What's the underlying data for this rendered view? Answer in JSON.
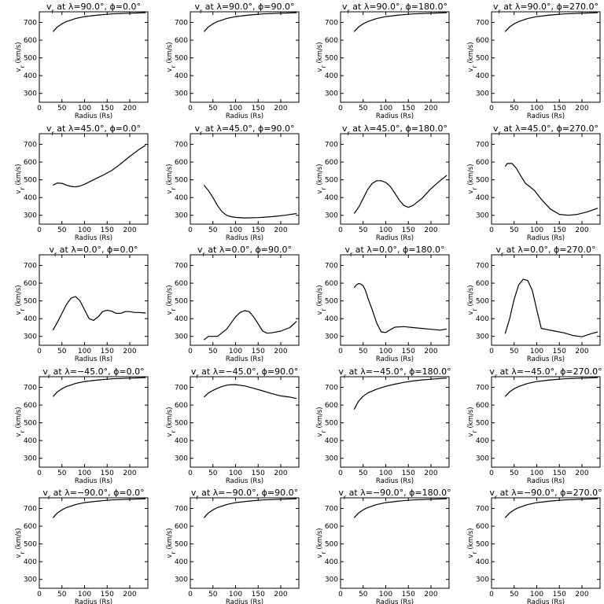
{
  "chart_data": {
    "type": "line",
    "grid": false,
    "rows": 5,
    "cols": 4,
    "xlabel": "Radius (Rs)",
    "ylabel": "v_r (km/s)",
    "xlim": [
      0,
      240
    ],
    "ylim": [
      250,
      760
    ],
    "xticks": [
      0,
      50,
      100,
      150,
      200
    ],
    "yticks": [
      300,
      400,
      500,
      600,
      700
    ],
    "panels": [
      {
        "title": "v_r at λ=90.0°, ϕ=0.0°",
        "x": [
          30,
          40,
          50,
          60,
          80,
          100,
          130,
          160,
          200,
          235
        ],
        "y": [
          648,
          675,
          692,
          705,
          722,
          733,
          742,
          748,
          752,
          755
        ]
      },
      {
        "title": "v_r at λ=90.0°, ϕ=90.0°",
        "x": [
          30,
          40,
          50,
          60,
          80,
          100,
          130,
          160,
          200,
          235
        ],
        "y": [
          648,
          675,
          692,
          705,
          722,
          733,
          742,
          748,
          752,
          755
        ]
      },
      {
        "title": "v_r at λ=90.0°, ϕ=180.0°",
        "x": [
          30,
          40,
          50,
          60,
          80,
          100,
          130,
          160,
          200,
          235
        ],
        "y": [
          648,
          675,
          692,
          705,
          722,
          733,
          742,
          748,
          752,
          755
        ]
      },
      {
        "title": "v_r at λ=90.0°, ϕ=270.0°",
        "x": [
          30,
          40,
          50,
          60,
          80,
          100,
          130,
          160,
          200,
          235
        ],
        "y": [
          648,
          675,
          692,
          705,
          722,
          733,
          742,
          748,
          752,
          755
        ]
      },
      {
        "title": "v_r at λ=45.0°, ϕ=0.0°",
        "x": [
          30,
          40,
          50,
          60,
          70,
          80,
          90,
          100,
          120,
          140,
          160,
          180,
          200,
          220,
          235
        ],
        "y": [
          470,
          482,
          480,
          470,
          463,
          460,
          465,
          475,
          500,
          525,
          552,
          590,
          632,
          670,
          695
        ]
      },
      {
        "title": "v_r at λ=45.0°, ϕ=90.0°",
        "x": [
          30,
          40,
          50,
          60,
          70,
          80,
          90,
          100,
          120,
          150,
          180,
          210,
          235
        ],
        "y": [
          470,
          440,
          400,
          355,
          320,
          300,
          292,
          288,
          285,
          287,
          292,
          300,
          310
        ]
      },
      {
        "title": "v_r at λ=45.0°, ϕ=180.0°",
        "x": [
          30,
          40,
          50,
          60,
          70,
          80,
          90,
          100,
          110,
          120,
          130,
          140,
          150,
          160,
          180,
          200,
          220,
          235
        ],
        "y": [
          310,
          345,
          395,
          445,
          480,
          495,
          495,
          485,
          462,
          425,
          385,
          355,
          345,
          355,
          395,
          450,
          495,
          525
        ]
      },
      {
        "title": "v_r at λ=45.0°, ϕ=270.0°",
        "x": [
          30,
          35,
          45,
          55,
          65,
          75,
          85,
          95,
          110,
          130,
          150,
          170,
          190,
          210,
          235
        ],
        "y": [
          575,
          592,
          593,
          565,
          520,
          480,
          460,
          440,
          390,
          335,
          305,
          300,
          305,
          318,
          340
        ]
      },
      {
        "title": "v_r at λ=0.0°, ϕ=0.0°",
        "x": [
          30,
          40,
          50,
          60,
          70,
          80,
          90,
          100,
          110,
          120,
          130,
          140,
          150,
          160,
          170,
          180,
          190,
          200,
          210,
          220,
          235
        ],
        "y": [
          335,
          380,
          430,
          480,
          515,
          525,
          500,
          450,
          400,
          390,
          410,
          440,
          448,
          442,
          430,
          430,
          440,
          440,
          435,
          435,
          432
        ]
      },
      {
        "title": "v_r at λ=0.0°, ϕ=90.0°",
        "x": [
          30,
          40,
          50,
          60,
          70,
          80,
          90,
          100,
          110,
          120,
          130,
          140,
          150,
          160,
          170,
          180,
          200,
          220,
          235
        ],
        "y": [
          280,
          300,
          300,
          300,
          320,
          340,
          375,
          410,
          435,
          445,
          440,
          410,
          370,
          330,
          318,
          320,
          330,
          350,
          385
        ]
      },
      {
        "title": "v_r at λ=0.0°, ϕ=180.0°",
        "x": [
          30,
          35,
          40,
          45,
          50,
          55,
          60,
          70,
          80,
          90,
          100,
          110,
          120,
          140,
          160,
          180,
          200,
          220,
          235
        ],
        "y": [
          575,
          590,
          598,
          595,
          585,
          560,
          520,
          450,
          375,
          325,
          322,
          338,
          352,
          355,
          350,
          345,
          340,
          335,
          342
        ]
      },
      {
        "title": "v_r at λ=0.0°, ϕ=270.0°",
        "x": [
          30,
          40,
          50,
          60,
          70,
          80,
          90,
          100,
          110,
          120,
          140,
          160,
          180,
          200,
          220,
          235
        ],
        "y": [
          315,
          400,
          510,
          590,
          622,
          615,
          560,
          450,
          345,
          340,
          330,
          320,
          305,
          298,
          315,
          325
        ]
      },
      {
        "title": "v_r at λ=−45.0°, ϕ=0.0°",
        "x": [
          30,
          40,
          50,
          60,
          80,
          100,
          130,
          160,
          200,
          235
        ],
        "y": [
          648,
          675,
          692,
          705,
          722,
          733,
          742,
          748,
          752,
          755
        ]
      },
      {
        "title": "v_r at λ=−45.0°, ϕ=90.0°",
        "x": [
          30,
          40,
          50,
          60,
          70,
          80,
          90,
          100,
          120,
          140,
          160,
          180,
          200,
          220,
          235
        ],
        "y": [
          645,
          668,
          683,
          695,
          705,
          712,
          715,
          715,
          708,
          695,
          680,
          665,
          652,
          645,
          637
        ]
      },
      {
        "title": "v_r at λ=−45.0°, ϕ=180.0°",
        "x": [
          30,
          35,
          40,
          50,
          60,
          80,
          100,
          120,
          140,
          160,
          180,
          200,
          220,
          235
        ],
        "y": [
          575,
          600,
          622,
          650,
          668,
          690,
          706,
          718,
          728,
          736,
          742,
          746,
          750,
          752
        ]
      },
      {
        "title": "v_r at λ=−45.0°, ϕ=270.0°",
        "x": [
          30,
          40,
          50,
          60,
          80,
          100,
          130,
          160,
          200,
          235
        ],
        "y": [
          648,
          675,
          692,
          705,
          722,
          733,
          742,
          748,
          752,
          755
        ]
      },
      {
        "title": "v_r at λ=−90.0°, ϕ=0.0°",
        "x": [
          30,
          40,
          50,
          60,
          80,
          100,
          130,
          160,
          200,
          235
        ],
        "y": [
          648,
          675,
          692,
          705,
          722,
          733,
          742,
          748,
          752,
          755
        ]
      },
      {
        "title": "v_r at λ=−90.0°, ϕ=90.0°",
        "x": [
          30,
          40,
          50,
          60,
          80,
          100,
          130,
          160,
          200,
          235
        ],
        "y": [
          648,
          675,
          692,
          705,
          722,
          733,
          742,
          748,
          752,
          755
        ]
      },
      {
        "title": "v_r at λ=−90.0°, ϕ=180.0°",
        "x": [
          30,
          40,
          50,
          60,
          80,
          100,
          130,
          160,
          200,
          235
        ],
        "y": [
          648,
          675,
          692,
          705,
          722,
          733,
          742,
          748,
          752,
          755
        ]
      },
      {
        "title": "v_r at λ=−90.0°, ϕ=270.0°",
        "x": [
          30,
          40,
          50,
          60,
          80,
          100,
          130,
          160,
          200,
          235
        ],
        "y": [
          648,
          675,
          692,
          705,
          722,
          733,
          742,
          748,
          752,
          755
        ]
      }
    ]
  }
}
